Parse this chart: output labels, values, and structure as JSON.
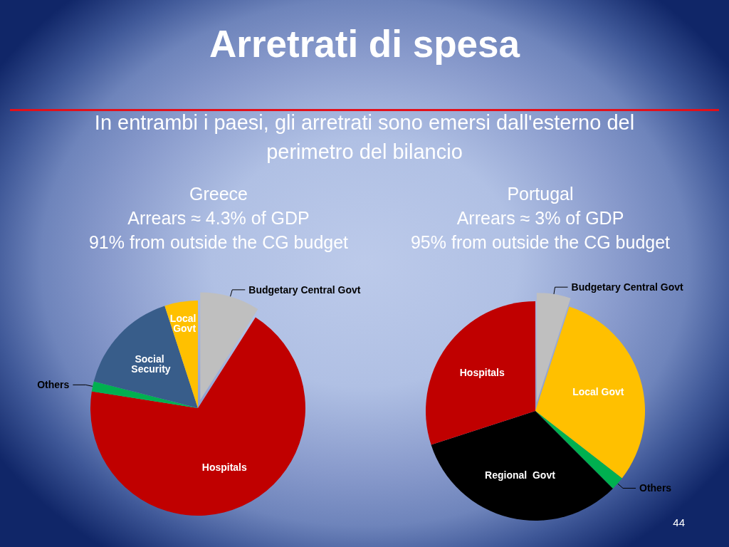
{
  "chart_data": [
    {
      "type": "other",
      "title": "Arretrati di spesa",
      "subtitle": "In entrambi i paesi, gli arretrati sono emersi dall'esterno del perimetro del bilancio",
      "annotations": [
        "44"
      ]
    },
    {
      "type": "pie",
      "title": "Greece",
      "subtitle": "Arrears ≈ 4.3% of GDP",
      "annotations": [
        "91% from outside the CG budget"
      ],
      "categories": [
        "Budgetary Central Govt",
        "Hospitals",
        "Others",
        "Social Security",
        "Local Govt"
      ],
      "values": [
        9,
        68.5,
        1.5,
        16,
        5
      ],
      "colors": [
        "#bfbfbf",
        "#c00000",
        "#00b050",
        "#385d8a",
        "#ffc000"
      ],
      "legend": false
    },
    {
      "type": "pie",
      "title": "Portugal",
      "subtitle": "Arrears ≈ 3% of GDP",
      "annotations": [
        "95% from outside the CG budget"
      ],
      "categories": [
        "Budgetary Central Govt",
        "Local Govt",
        "Others",
        "Regional  Govt",
        "Hospitals"
      ],
      "values": [
        5,
        30.5,
        2,
        32.5,
        30
      ],
      "colors": [
        "#bfbfbf",
        "#ffc000",
        "#00b050",
        "#000000",
        "#c00000"
      ],
      "legend": false
    }
  ]
}
